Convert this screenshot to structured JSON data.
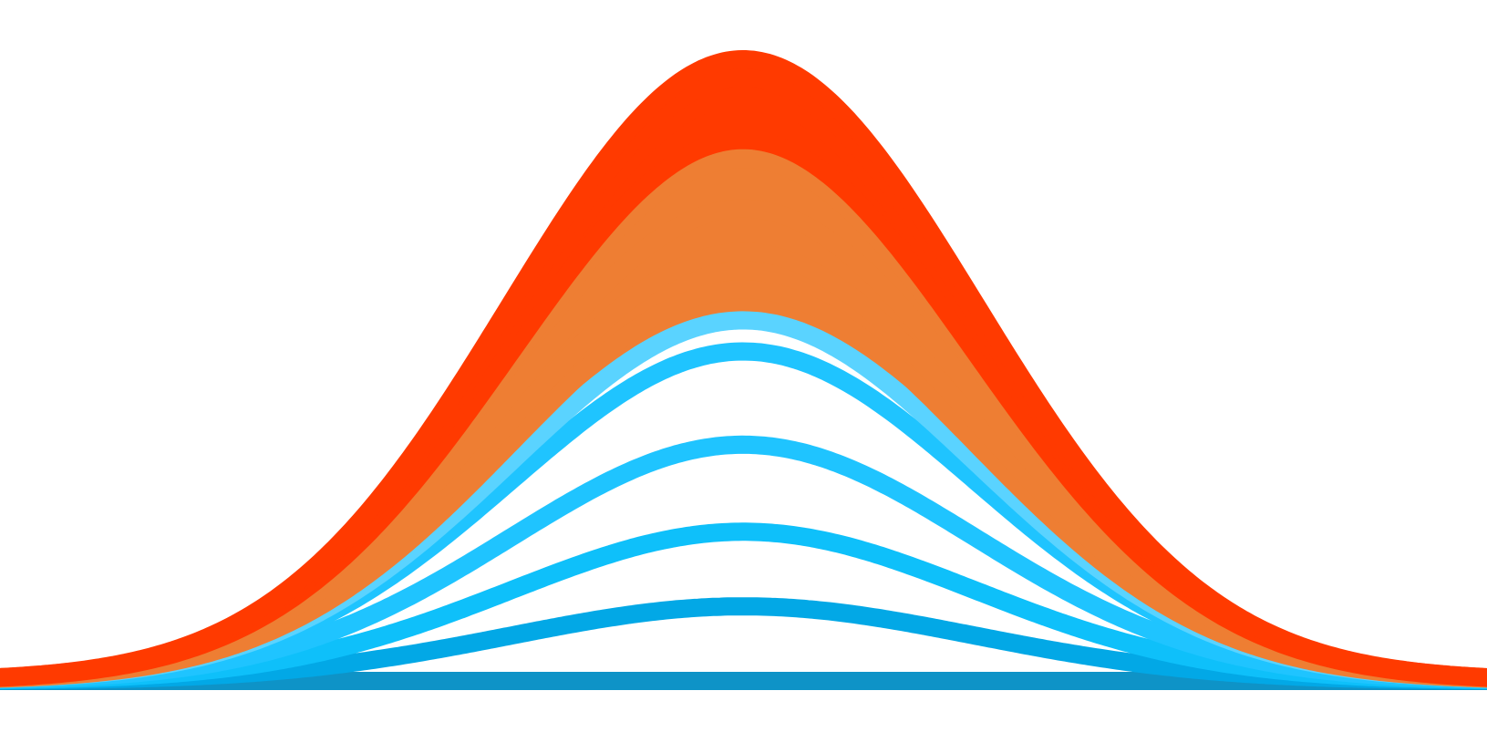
{
  "artwork": {
    "type": "layered-bell-curves",
    "curves": [
      {
        "id": "teal-baseline",
        "color": "#0E93C7",
        "peak_ratio": 0.0
      },
      {
        "id": "blue-1",
        "color": "#02A8E6",
        "peak_ratio": 0.12
      },
      {
        "id": "blue-2",
        "color": "#0EC0FA",
        "peak_ratio": 0.24
      },
      {
        "id": "blue-3",
        "color": "#1FC4FF",
        "peak_ratio": 0.38
      },
      {
        "id": "blue-4",
        "color": "#1FC4FF",
        "peak_ratio": 0.53
      },
      {
        "id": "light-blue",
        "color": "#5AD3FF",
        "peak_ratio": 0.58
      },
      {
        "id": "orange-1",
        "color": "#EE7E33",
        "peak_ratio": 0.63
      },
      {
        "id": "orange-2",
        "color": "#EE7E33",
        "peak_ratio": 0.69
      },
      {
        "id": "orange-3",
        "color": "#EE7E33",
        "peak_ratio": 0.76
      },
      {
        "id": "orange-4",
        "color": "#EE7E33",
        "peak_ratio": 0.84
      },
      {
        "id": "red-1",
        "color": "#FF3A00",
        "peak_ratio": 0.87
      },
      {
        "id": "red-2",
        "color": "#FF3A00",
        "peak_ratio": 0.94
      },
      {
        "id": "red-3",
        "color": "#FF3A00",
        "peak_ratio": 0.97
      },
      {
        "id": "red-4",
        "color": "#FF3A00",
        "peak_ratio": 1.0
      }
    ],
    "fill_bands": [
      {
        "id": "orange-band",
        "color": "#EE7E33",
        "from_curve": "light-blue",
        "to_curve": "red-1"
      },
      {
        "id": "red-band",
        "color": "#FF3A00",
        "from_curve": "red-1",
        "to_curve": "red-4"
      }
    ]
  }
}
